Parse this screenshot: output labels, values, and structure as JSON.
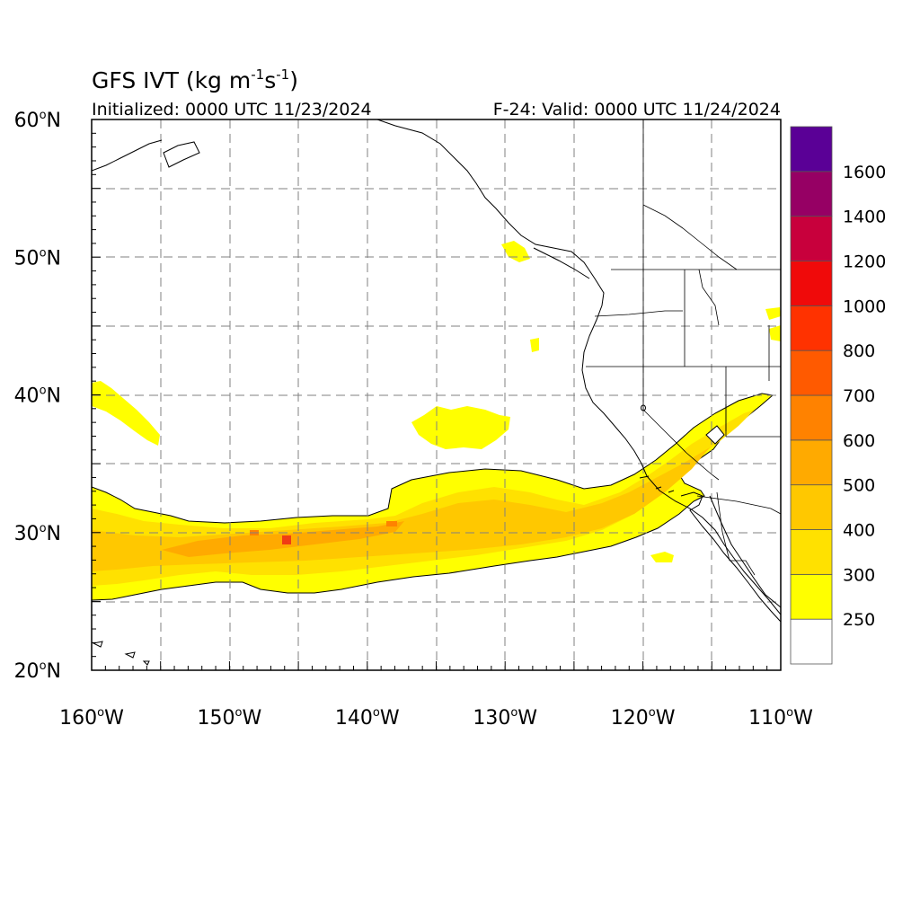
{
  "title": {
    "main": "GFS IVT (kg m",
    "exp1": "-1",
    "mid": "s",
    "exp2": "-1",
    "close": ")"
  },
  "initialized": "Initialized: 0000 UTC 11/23/2024",
  "valid": "F-24: Valid: 0000 UTC 11/24/2024",
  "lat_labels": [
    {
      "num": "60",
      "sup": "o",
      "hem": "N"
    },
    {
      "num": "50",
      "sup": "o",
      "hem": "N"
    },
    {
      "num": "40",
      "sup": "o",
      "hem": "N"
    },
    {
      "num": "30",
      "sup": "o",
      "hem": "N"
    },
    {
      "num": "20",
      "sup": "o",
      "hem": "N"
    }
  ],
  "lon_labels": [
    {
      "num": "160",
      "sup": "o",
      "hem": "W"
    },
    {
      "num": "150",
      "sup": "o",
      "hem": "W"
    },
    {
      "num": "140",
      "sup": "o",
      "hem": "W"
    },
    {
      "num": "130",
      "sup": "o",
      "hem": "W"
    },
    {
      "num": "120",
      "sup": "o",
      "hem": "W"
    },
    {
      "num": "110",
      "sup": "o",
      "hem": "W"
    }
  ],
  "map_extent": {
    "lon_min": -160,
    "lon_max": -110,
    "lat_min": 20,
    "lat_max": 60
  },
  "colorbar": {
    "bins": [
      {
        "label": "",
        "color": "#ffffff"
      },
      {
        "label": "250",
        "color": "#ffff00"
      },
      {
        "label": "300",
        "color": "#ffe100"
      },
      {
        "label": "400",
        "color": "#ffc800"
      },
      {
        "label": "500",
        "color": "#ffaa00"
      },
      {
        "label": "600",
        "color": "#ff8200"
      },
      {
        "label": "700",
        "color": "#ff5a00"
      },
      {
        "label": "800",
        "color": "#ff3200"
      },
      {
        "label": "1000",
        "color": "#f00a0a"
      },
      {
        "label": "1200",
        "color": "#c8003c"
      },
      {
        "label": "1400",
        "color": "#960064"
      },
      {
        "label": "1600",
        "color": "#5a0096"
      }
    ]
  },
  "colors": {
    "ivt_250": "#ffff00",
    "ivt_300": "#ffe100",
    "ivt_400": "#ffc800",
    "ivt_500": "#ffaa00",
    "ivt_max": "#f03c14",
    "coast": "#000000",
    "grid": "#808080"
  }
}
